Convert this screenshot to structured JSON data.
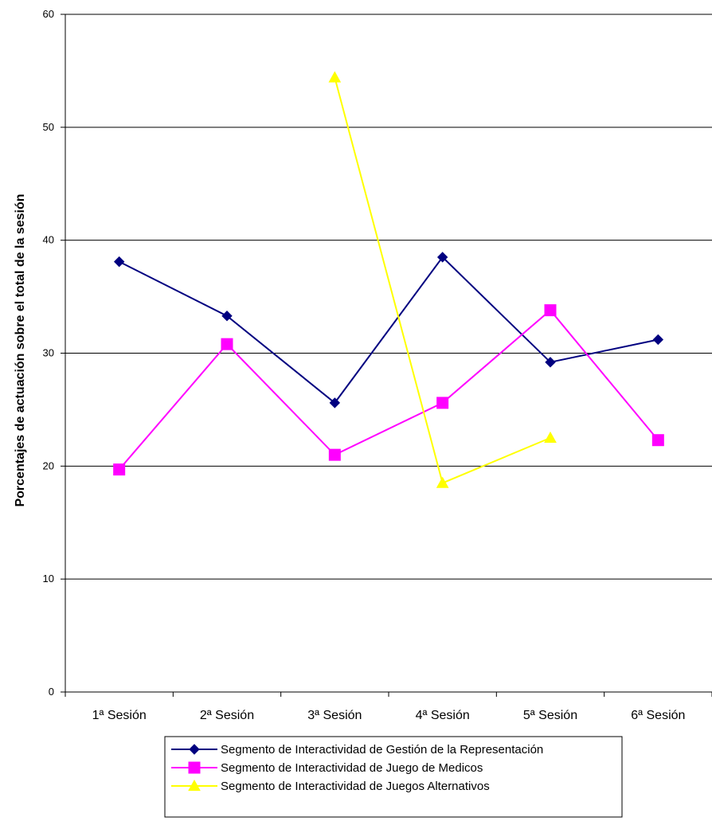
{
  "chart_data": {
    "type": "line",
    "title": "",
    "xlabel": "",
    "ylabel": "Porcentajes de actuación sobre el total de la sesión",
    "ylim": [
      0,
      60
    ],
    "yticks": [
      0,
      10,
      20,
      30,
      40,
      50,
      60
    ],
    "grid": "horizontal",
    "legend_position": "bottom",
    "categories": [
      "1ª Sesión",
      "2ª Sesión",
      "3ª Sesión",
      "4ª Sesión",
      "5ª Sesión",
      "6ª Sesión"
    ],
    "series": [
      {
        "name": "Segmento de Interactividad de Gestión de la Representación",
        "color": "#000080",
        "marker": "diamond",
        "values": [
          38.1,
          33.3,
          25.6,
          38.5,
          29.2,
          31.2
        ]
      },
      {
        "name": "Segmento de Interactividad de Juego de Medicos",
        "color": "#FF00FF",
        "marker": "square",
        "values": [
          19.7,
          30.8,
          21.0,
          25.6,
          33.8,
          22.3
        ]
      },
      {
        "name": "Segmento de Interactividad de Juegos Alternativos",
        "color": "#FFFF00",
        "marker": "triangle",
        "values": [
          null,
          null,
          54.4,
          18.5,
          22.5,
          null
        ]
      }
    ]
  }
}
